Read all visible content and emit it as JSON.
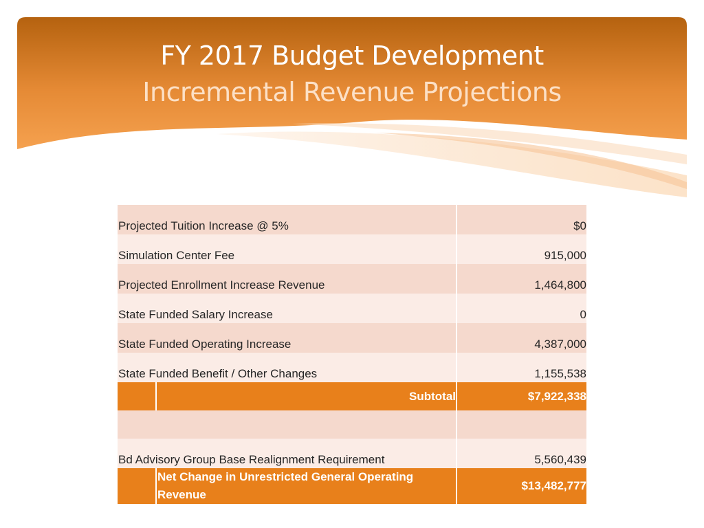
{
  "slide": {
    "title": "FY 2017 Budget Development",
    "subtitle": "Incremental Revenue Projections"
  },
  "colors": {
    "banner_top": "#b5620f",
    "banner_bottom": "#f5a14f",
    "row_shade": "#f5d9cd",
    "row_light": "#fbecE6",
    "highlight": "#e8801b"
  },
  "table": {
    "rows": [
      {
        "label": "Projected Tuition Increase @ 5%",
        "value": "$0"
      },
      {
        "label": "Simulation Center Fee",
        "value": "915,000"
      },
      {
        "label": "Projected Enrollment Increase Revenue",
        "value": "1,464,800"
      },
      {
        "label": "State Funded Salary Increase",
        "value": "0"
      },
      {
        "label": "State Funded Operating Increase",
        "value": "4,387,000"
      },
      {
        "label": "State Funded Benefit / Other Changes",
        "value": "1,155,538"
      }
    ],
    "subtotal": {
      "label": "Subtotal",
      "value": "$7,922,338"
    },
    "realignment": {
      "label": "Bd Advisory Group Base Realignment Requirement",
      "value": "5,560,439"
    },
    "net_change": {
      "label": "Net Change in Unrestricted General Operating Revenue",
      "value": "$13,482,777"
    }
  }
}
